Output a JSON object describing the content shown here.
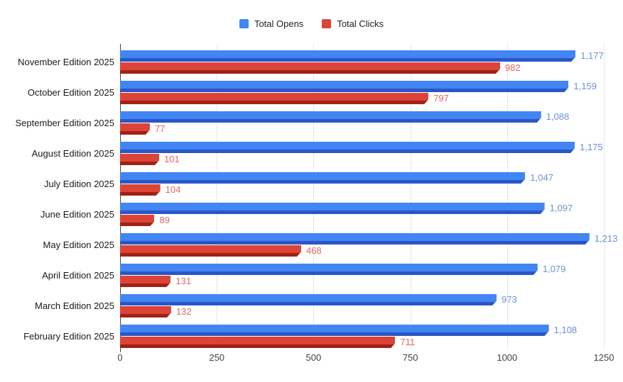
{
  "chart_data": {
    "type": "bar",
    "orientation": "horizontal",
    "title": "",
    "xlabel": "",
    "ylabel": "",
    "grid": true,
    "legend_position": "top",
    "xlim": [
      0,
      1250
    ],
    "x_ticks": [
      "0",
      "250",
      "500",
      "750",
      "1000",
      "1250"
    ],
    "x_tick_values": [
      0,
      250,
      500,
      750,
      1000,
      1250
    ],
    "categories": [
      "November Edition 2025",
      "October Edition 2025",
      "September Edition 2025",
      "August Edition 2025",
      "July Edition 2025",
      "June Edition 2025",
      "May Edition 2025",
      "April Edition 2025",
      "March Edition 2025",
      "February Edition 2025"
    ],
    "series": [
      {
        "name": "Total Opens",
        "color": "#4285f4",
        "dark_color": "#2a56c6",
        "label_color": "#6b90d3",
        "values": [
          1177,
          1159,
          1088,
          1175,
          1047,
          1097,
          1213,
          1079,
          973,
          1108
        ],
        "labels": [
          "1,177",
          "1,159",
          "1,088",
          "1,175",
          "1,047",
          "1,097",
          "1,213",
          "1,079",
          "973",
          "1,108"
        ]
      },
      {
        "name": "Total Clicks",
        "color": "#db4437",
        "dark_color": "#a02115",
        "label_color": "#e2685d",
        "values": [
          982,
          797,
          77,
          101,
          104,
          89,
          468,
          131,
          132,
          711
        ],
        "labels": [
          "982",
          "797",
          "77",
          "101",
          "104",
          "89",
          "468",
          "131",
          "132",
          "711"
        ]
      }
    ]
  }
}
